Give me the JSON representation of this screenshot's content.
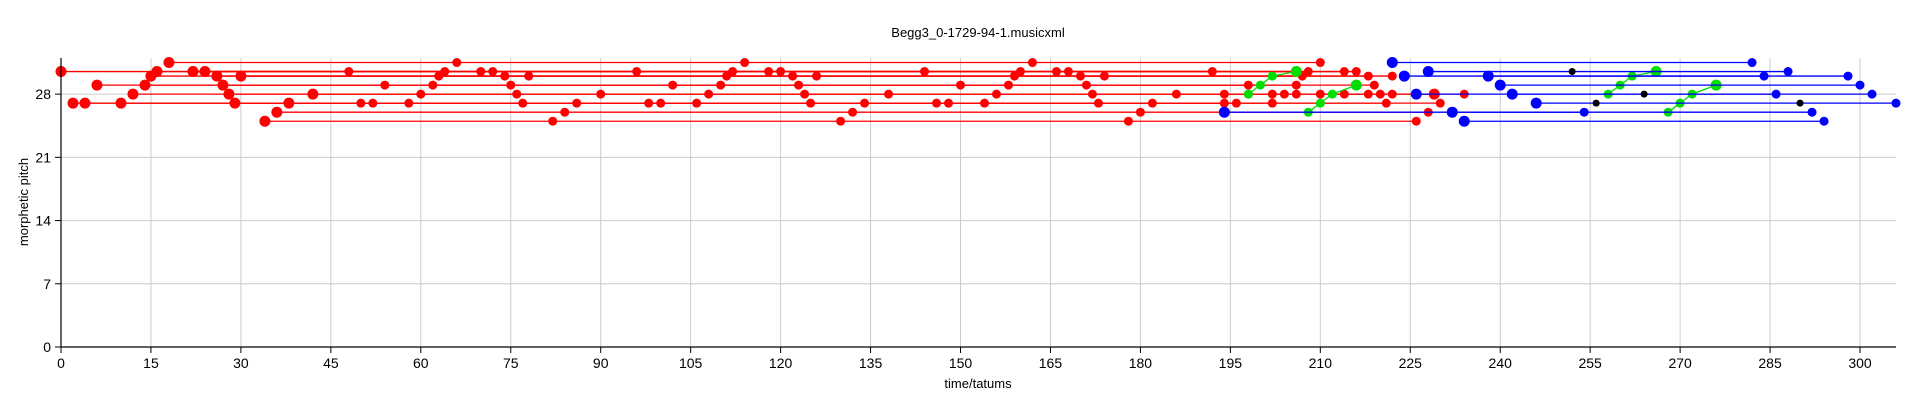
{
  "chart_data": {
    "type": "scatter",
    "title": "Begg3_0-1729-94-1.musicxml",
    "xlabel": "time/tatums",
    "ylabel": "morphetic pitch",
    "xlim": [
      0,
      306
    ],
    "ylim": [
      0,
      32
    ],
    "xticks": [
      0,
      15,
      30,
      45,
      60,
      75,
      90,
      105,
      120,
      135,
      150,
      165,
      180,
      195,
      210,
      225,
      240,
      255,
      270,
      285,
      300
    ],
    "yticks": [
      0,
      7,
      14,
      21,
      28
    ],
    "grid": true,
    "legend": "none",
    "colors": {
      "red": "#ff0000",
      "green": "#00dd00",
      "blue": "#0000ff",
      "black": "#000000",
      "grid": "#cccccc"
    },
    "series": [
      {
        "color": "red",
        "patterns": [
          {
            "pitch": 30.5,
            "onsets": [
              0,
              48,
              96,
              144,
              192
            ]
          },
          {
            "pitch": 27,
            "onsets": [
              2,
              50,
              98,
              146,
              194
            ]
          },
          {
            "pitch": 27,
            "onsets": [
              4,
              52,
              100,
              148,
              196
            ]
          },
          {
            "pitch": 29,
            "onsets": [
              6,
              54,
              102,
              150,
              198
            ]
          },
          {
            "pitch": 27,
            "onsets": [
              10,
              58,
              106,
              154,
              202
            ]
          },
          {
            "pitch": 28,
            "onsets": [
              12,
              60,
              108,
              156,
              204
            ]
          },
          {
            "pitch": 29,
            "onsets": [
              14,
              62,
              110,
              158,
              206
            ]
          },
          {
            "pitch": 30,
            "onsets": [
              15,
              63,
              111,
              159,
              207
            ]
          },
          {
            "pitch": 30.5,
            "onsets": [
              16,
              64,
              112,
              160,
              208
            ]
          },
          {
            "pitch": 31.5,
            "onsets": [
              18,
              66,
              114,
              162,
              210
            ]
          },
          {
            "pitch": 30.5,
            "onsets": [
              22,
              70,
              118,
              166,
              214
            ]
          },
          {
            "pitch": 30.5,
            "onsets": [
              24,
              72,
              120,
              168,
              216
            ]
          },
          {
            "pitch": 30,
            "onsets": [
              26,
              74,
              122,
              170,
              218
            ]
          },
          {
            "pitch": 29,
            "onsets": [
              27,
              75,
              123,
              171,
              219
            ]
          },
          {
            "pitch": 28,
            "onsets": [
              28,
              76,
              124,
              172,
              220
            ]
          },
          {
            "pitch": 27,
            "onsets": [
              29,
              77,
              125,
              173,
              221
            ]
          },
          {
            "pitch": 30,
            "onsets": [
              30,
              78,
              126,
              174,
              222
            ]
          },
          {
            "pitch": 25,
            "onsets": [
              34,
              82,
              130,
              178,
              226
            ]
          },
          {
            "pitch": 26,
            "onsets": [
              36,
              84,
              132,
              180,
              228
            ]
          },
          {
            "pitch": 27,
            "onsets": [
              38,
              86,
              134,
              182,
              230
            ]
          },
          {
            "pitch": 28,
            "onsets": [
              42,
              90,
              138,
              186,
              234
            ]
          }
        ],
        "connected": [
          [
            [
              194,
              28
            ],
            [
              198,
              28
            ],
            [
              202,
              28
            ],
            [
              206,
              28
            ],
            [
              210,
              28
            ],
            [
              214,
              28
            ],
            [
              218,
              28
            ],
            [
              222,
              28
            ],
            [
              226,
              28
            ],
            [
              229,
              28
            ]
          ]
        ]
      },
      {
        "color": "green",
        "patterns": [],
        "connected": [
          [
            [
              198,
              28
            ],
            [
              200,
              29
            ],
            [
              202,
              30
            ],
            [
              206,
              30.5
            ]
          ],
          [
            [
              208,
              26
            ],
            [
              210,
              27
            ],
            [
              212,
              28
            ],
            [
              216,
              29
            ]
          ],
          [
            [
              258,
              28
            ],
            [
              260,
              29
            ],
            [
              262,
              30
            ],
            [
              266,
              30.5
            ]
          ],
          [
            [
              268,
              26
            ],
            [
              270,
              27
            ],
            [
              272,
              28
            ],
            [
              276,
              29
            ]
          ]
        ]
      },
      {
        "color": "blue",
        "patterns": [
          {
            "pitch": 26,
            "onsets": [
              194,
              254
            ]
          },
          {
            "pitch": 31.5,
            "onsets": [
              222,
              282
            ]
          },
          {
            "pitch": 30.5,
            "onsets": [
              228,
              288
            ]
          },
          {
            "pitch": 30,
            "onsets": [
              224,
              284
            ]
          },
          {
            "pitch": 28,
            "onsets": [
              226,
              286
            ]
          },
          {
            "pitch": 26,
            "onsets": [
              232,
              292
            ]
          },
          {
            "pitch": 25,
            "onsets": [
              234,
              294
            ]
          },
          {
            "pitch": 30,
            "onsets": [
              238,
              298
            ]
          },
          {
            "pitch": 29,
            "onsets": [
              240,
              300
            ]
          },
          {
            "pitch": 28,
            "onsets": [
              242,
              302
            ]
          },
          {
            "pitch": 27,
            "onsets": [
              246,
              306
            ]
          }
        ],
        "connected": []
      },
      {
        "color": "black",
        "points": [
          [
            252,
            30.5
          ],
          [
            256,
            27
          ],
          [
            264,
            28
          ],
          [
            290,
            27
          ]
        ]
      }
    ]
  }
}
